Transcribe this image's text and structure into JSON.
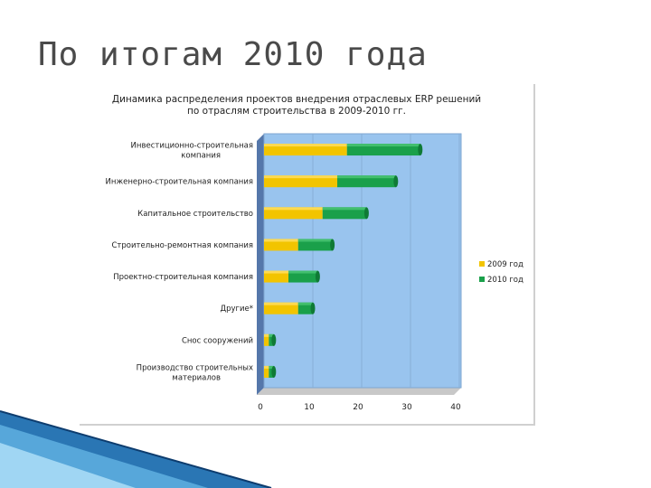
{
  "slide": {
    "title": "По итогам 2010 года"
  },
  "colors": {
    "series_2009": "#f2c400",
    "series_2010": "#1aa04a",
    "plot_bg": "#99c4ee",
    "deco_blue": "#1f6fb0"
  },
  "chart_data": {
    "type": "bar",
    "orientation": "horizontal",
    "stacked": true,
    "title": "Динамика распределения проектов внедрения отраслевых ERP решений по отраслям строительства в 2009-2010 гг.",
    "categories": [
      "Инвестиционно-строительная компания",
      "Инженерно-строительная компания",
      "Капитальное строительство",
      "Строительно-ремонтная компания",
      "Проектно-строительная компания",
      "Другие*",
      "Снос сооружений",
      "Производство строительных материалов"
    ],
    "series": [
      {
        "name": "2009 год",
        "values": [
          17,
          15,
          12,
          7,
          5,
          7,
          1,
          1
        ]
      },
      {
        "name": "2010 год",
        "values": [
          15,
          12,
          9,
          7,
          6,
          3,
          1,
          1
        ]
      }
    ],
    "xlim": [
      0,
      40
    ],
    "xticks": [
      "0",
      "10",
      "20",
      "30",
      "40"
    ],
    "grid": true,
    "legend_position": "right"
  }
}
